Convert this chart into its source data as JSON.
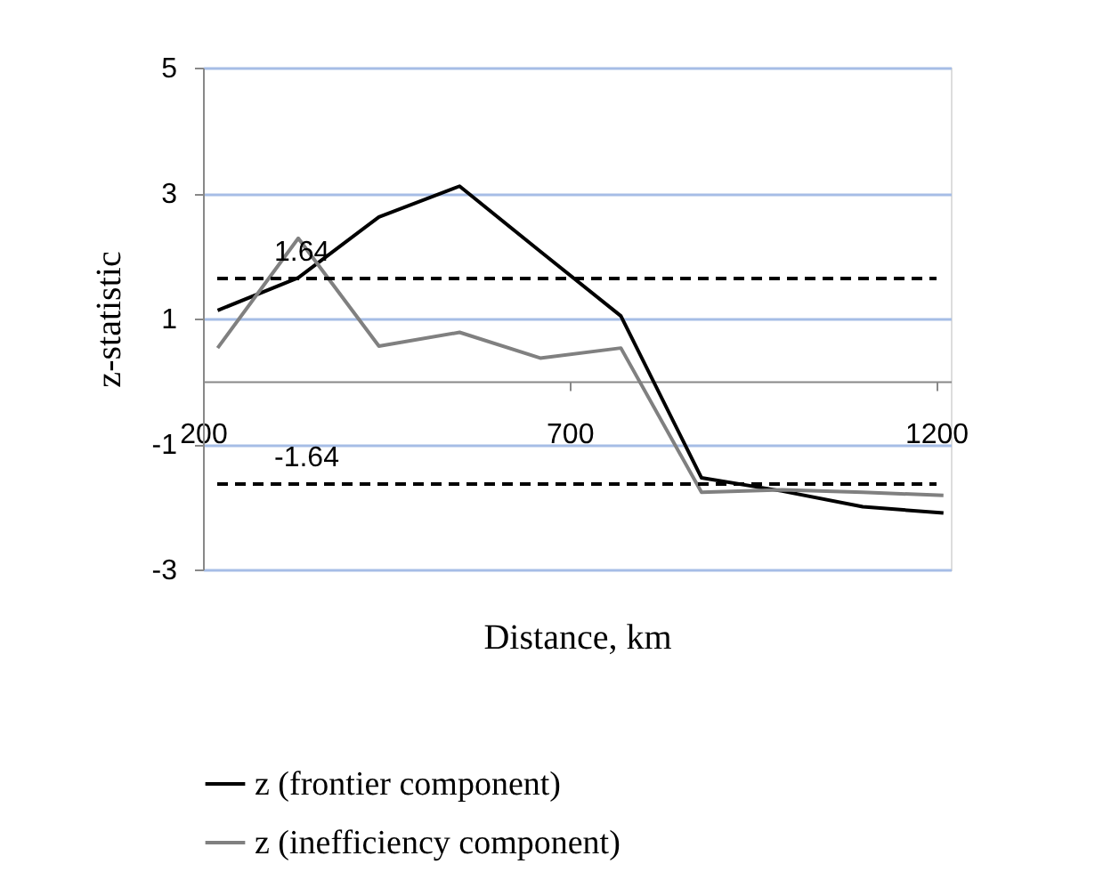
{
  "chart_data": {
    "type": "line",
    "xlabel": "Distance, km",
    "ylabel": "z-statistic",
    "x": [
      220,
      330,
      440,
      550,
      660,
      770,
      880,
      990,
      1100,
      1210
    ],
    "series": [
      {
        "name": "z (frontier component)",
        "color": "#000000",
        "values": [
          1.13,
          1.65,
          2.62,
          3.11,
          2.07,
          1.04,
          -1.54,
          -1.75,
          -2.0,
          -2.1
        ]
      },
      {
        "name": "z (inefficiency component)",
        "color": "#808080",
        "values": [
          0.53,
          2.28,
          0.56,
          0.78,
          0.37,
          0.53,
          -1.77,
          -1.73,
          -1.77,
          -1.82
        ]
      }
    ],
    "xlim": [
      200,
      1220
    ],
    "xticks": [
      200,
      700,
      1200
    ],
    "ylim": [
      -3,
      5
    ],
    "yticks": [
      -3,
      -1,
      1,
      3,
      5
    ],
    "ref_lines": [
      {
        "axis": "y",
        "value": 1.64,
        "label": "1.64",
        "color": "#000000",
        "line_style": "dashed"
      },
      {
        "axis": "y",
        "value": -1.64,
        "label": "-1.64",
        "color": "#000000",
        "line_style": "dashed"
      }
    ],
    "grid": "y",
    "legend": "bottom",
    "marker": "none",
    "line_style": "solid"
  }
}
